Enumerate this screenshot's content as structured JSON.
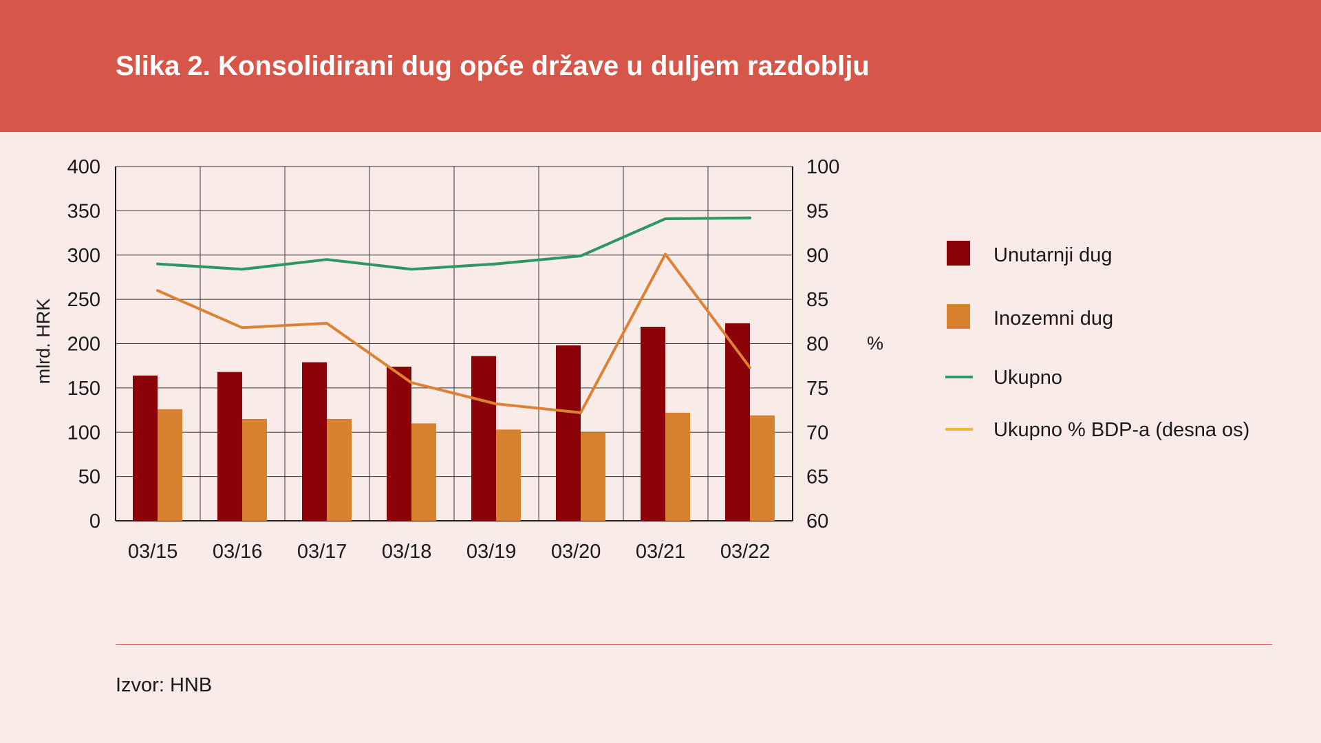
{
  "header": {
    "title": "Slika 2. Konsolidirani dug opće države u duljem razdoblju"
  },
  "footer": {
    "source": "Izvor: HNB"
  },
  "colors": {
    "background": "#f9ebe8",
    "banner": "#d6564a",
    "domestic": "#8b0308",
    "foreign": "#d6822e",
    "total": "#2e9564",
    "total_pct_line": "#dd8235",
    "total_pct_legend": "#f0b63a"
  },
  "chart_data": {
    "type": "bar",
    "title": "",
    "categories": [
      "03/15",
      "03/16",
      "03/17",
      "03/18",
      "03/19",
      "03/20",
      "03/21",
      "03/22"
    ],
    "ylabel": "mlrd. HRK",
    "ylabel_right": "%",
    "ylim": [
      0,
      400
    ],
    "ylim_right": [
      60,
      100
    ],
    "yticks": [
      "0",
      "50",
      "100",
      "150",
      "200",
      "250",
      "300",
      "350",
      "400"
    ],
    "yticks_right": [
      "60",
      "65",
      "70",
      "75",
      "80",
      "85",
      "90",
      "95",
      "100"
    ],
    "grid": true,
    "legend_position": "right",
    "series": [
      {
        "name": "Unutarnji dug",
        "kind": "bar",
        "axis": "left",
        "values": [
          164,
          168,
          179,
          174,
          186,
          198,
          219,
          223
        ]
      },
      {
        "name": "Inozemni dug",
        "kind": "bar",
        "axis": "left",
        "values": [
          126,
          115,
          115,
          110,
          103,
          100,
          122,
          119
        ]
      },
      {
        "name": "Ukupno",
        "kind": "line",
        "axis": "left",
        "values": [
          290,
          284,
          295,
          284,
          290,
          299,
          341,
          342
        ]
      },
      {
        "name": "Ukupno % BDP-a (desna os)",
        "kind": "line",
        "axis": "right",
        "values": [
          86.0,
          81.8,
          82.3,
          75.6,
          73.2,
          72.2,
          90.1,
          77.3
        ]
      }
    ]
  }
}
